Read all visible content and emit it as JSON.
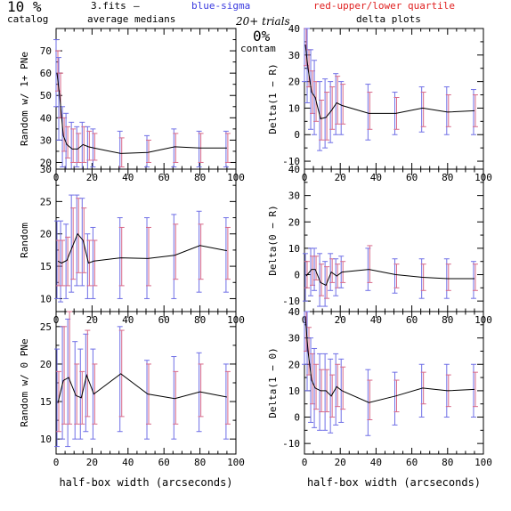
{
  "header": {
    "percent": "10 %",
    "catalog": "catalog",
    "filename": "3.fits",
    "dash": "–",
    "blue_label": "blue-sigma",
    "red_label": "red-upper/lower quartile",
    "avg_medians": "average medians",
    "trials": "20+ trials",
    "contam_pct": "0%",
    "contam": "contam",
    "delta_plots": "delta plots"
  },
  "colors": {
    "line": "#000000",
    "sigma": "#6f6fe6",
    "quartile": "#d86a8a",
    "blue_text": "#3a3adf",
    "red_text": "#e02020"
  },
  "chart_data": [
    {
      "type": "line",
      "panel": "left-top",
      "ylabel": "Random w/ 1+ PNe",
      "xlabel": "",
      "xlim": [
        0,
        100
      ],
      "ylim": [
        17,
        80
      ],
      "x_ticks": [
        0,
        20,
        40,
        60,
        80,
        100
      ],
      "y_ticks": [
        20,
        30,
        40,
        50,
        60,
        70
      ],
      "x": [
        0.5,
        2,
        4,
        6,
        9,
        12,
        15,
        18,
        21,
        36,
        51,
        66,
        80,
        95
      ],
      "y": [
        60,
        50,
        32,
        28,
        26,
        26,
        28,
        27,
        26.5,
        24,
        24.5,
        27,
        26.5,
        26.5
      ],
      "sigma": [
        [
          45,
          75
        ],
        [
          30,
          67
        ],
        [
          18,
          45
        ],
        [
          17,
          42
        ],
        [
          17,
          38
        ],
        [
          18,
          36
        ],
        [
          16,
          38
        ],
        [
          17,
          36
        ],
        [
          18,
          35
        ],
        [
          17,
          34
        ],
        [
          18,
          32
        ],
        [
          18,
          35
        ],
        [
          18,
          34
        ],
        [
          18,
          34
        ]
      ],
      "quartile": [
        [
          52,
          70
        ],
        [
          40,
          60
        ],
        [
          25,
          40
        ],
        [
          22,
          36
        ],
        [
          20,
          35
        ],
        [
          20,
          33
        ],
        [
          20,
          36
        ],
        [
          21,
          34
        ],
        [
          21,
          33
        ],
        [
          18,
          31
        ],
        [
          20,
          30
        ],
        [
          20,
          33
        ],
        [
          20,
          33
        ],
        [
          20,
          33
        ]
      ]
    },
    {
      "type": "line",
      "panel": "right-top",
      "ylabel": "Delta(1 − R)",
      "xlabel": "",
      "xlim": [
        0,
        100
      ],
      "ylim": [
        -13,
        40
      ],
      "x_ticks": [
        0,
        20,
        40,
        60,
        80,
        100
      ],
      "y_ticks": [
        -10,
        0,
        10,
        20,
        30,
        40
      ],
      "x": [
        0.5,
        2,
        4,
        6,
        9,
        12,
        15,
        18,
        21,
        36,
        51,
        66,
        80,
        95
      ],
      "y": [
        34,
        25,
        16,
        14,
        6,
        6.5,
        9,
        12,
        11,
        8,
        8,
        10,
        8.5,
        9
      ],
      "sigma": [
        [
          20,
          48
        ],
        [
          12,
          40
        ],
        [
          2,
          32
        ],
        [
          0,
          28
        ],
        [
          -6,
          20
        ],
        [
          -5,
          21
        ],
        [
          -3,
          20
        ],
        [
          0,
          23
        ],
        [
          0,
          20
        ],
        [
          -2,
          19
        ],
        [
          0,
          16
        ],
        [
          1,
          18
        ],
        [
          0,
          18
        ],
        [
          0,
          17
        ]
      ],
      "quartile": [
        [
          26,
          40
        ],
        [
          18,
          32
        ],
        [
          8,
          24
        ],
        [
          5,
          20
        ],
        [
          -2,
          13
        ],
        [
          -2,
          16
        ],
        [
          2,
          18
        ],
        [
          4,
          22
        ],
        [
          4,
          19
        ],
        [
          2,
          16
        ],
        [
          2,
          14
        ],
        [
          3,
          16
        ],
        [
          3,
          15
        ],
        [
          3,
          15
        ]
      ]
    },
    {
      "type": "line",
      "panel": "left-middle",
      "ylabel": "Random",
      "xlabel": "",
      "xlim": [
        0,
        100
      ],
      "ylim": [
        8,
        30
      ],
      "x_ticks": [
        0,
        20,
        40,
        60,
        80,
        100
      ],
      "y_ticks": [
        10,
        15,
        20,
        25,
        30
      ],
      "x": [
        1,
        3,
        6,
        9,
        12,
        15,
        18,
        21,
        36,
        51,
        66,
        80,
        95
      ],
      "y": [
        15.8,
        15.5,
        15.9,
        18,
        20,
        19,
        15.5,
        15.8,
        16.3,
        16.2,
        16.7,
        18.2,
        17.4
      ],
      "sigma": [
        [
          10,
          22
        ],
        [
          9.5,
          22
        ],
        [
          10,
          21.5
        ],
        [
          11,
          26
        ],
        [
          12,
          26
        ],
        [
          12,
          25.5
        ],
        [
          10,
          20
        ],
        [
          10,
          21
        ],
        [
          10,
          22.5
        ],
        [
          10,
          22.5
        ],
        [
          10,
          23
        ],
        [
          11,
          23.5
        ],
        [
          11,
          22.5
        ]
      ],
      "quartile": [
        [
          12,
          19
        ],
        [
          12,
          19
        ],
        [
          12,
          19.5
        ],
        [
          13,
          24
        ],
        [
          14,
          25.5
        ],
        [
          14,
          24
        ],
        [
          12,
          19
        ],
        [
          12,
          19
        ],
        [
          12,
          21
        ],
        [
          12,
          21
        ],
        [
          13,
          21.5
        ],
        [
          13,
          21.5
        ],
        [
          13,
          21
        ]
      ]
    },
    {
      "type": "line",
      "panel": "right-middle",
      "ylabel": "Delta(0 − R)",
      "xlabel": "",
      "xlim": [
        0,
        100
      ],
      "ylim": [
        -14,
        40
      ],
      "x_ticks": [
        0,
        20,
        40,
        60,
        80,
        100
      ],
      "y_ticks": [
        -10,
        0,
        10,
        20,
        30,
        40
      ],
      "x": [
        1,
        4,
        6,
        9,
        12,
        15,
        18,
        21,
        36,
        51,
        66,
        80,
        95
      ],
      "y": [
        -0.5,
        2,
        2,
        -3,
        -4,
        1,
        -0.5,
        1,
        2,
        0,
        -1,
        -1.5,
        -1.5
      ],
      "sigma": [
        [
          -10,
          8
        ],
        [
          -8,
          10
        ],
        [
          -6,
          10
        ],
        [
          -12,
          8
        ],
        [
          -12,
          5
        ],
        [
          -6,
          8
        ],
        [
          -8,
          6
        ],
        [
          -5,
          7
        ],
        [
          -6,
          10
        ],
        [
          -7,
          6
        ],
        [
          -9,
          6
        ],
        [
          -9,
          6
        ],
        [
          -9,
          5
        ]
      ],
      "quartile": [
        [
          -5,
          5
        ],
        [
          -4,
          7
        ],
        [
          -2,
          7
        ],
        [
          -8,
          4
        ],
        [
          -9,
          3
        ],
        [
          -3,
          6
        ],
        [
          -5,
          4
        ],
        [
          -3,
          5
        ],
        [
          -3,
          11
        ],
        [
          -5,
          4
        ],
        [
          -6,
          4
        ],
        [
          -6,
          4
        ],
        [
          -6,
          4
        ]
      ]
    },
    {
      "type": "line",
      "panel": "left-bottom",
      "ylabel": "Random w/ 0 PNe",
      "xlabel": "half-box width (arcseconds)",
      "xlim": [
        0,
        100
      ],
      "ylim": [
        8,
        27
      ],
      "x_ticks": [
        0,
        20,
        40,
        60,
        80,
        100
      ],
      "y_ticks": [
        10,
        15,
        20,
        25
      ],
      "x": [
        1,
        4,
        7,
        11,
        14,
        17,
        21,
        36,
        51,
        66,
        80,
        95
      ],
      "y": [
        14.8,
        17.8,
        18.2,
        15.8,
        15.5,
        18.5,
        16,
        18.7,
        16,
        15.4,
        16.3,
        15.6
      ],
      "sigma": [
        [
          9,
          22
        ],
        [
          10,
          25
        ],
        [
          9,
          26
        ],
        [
          10,
          23
        ],
        [
          10,
          22
        ],
        [
          11,
          24
        ],
        [
          10,
          22
        ],
        [
          11,
          25
        ],
        [
          10,
          20.5
        ],
        [
          10,
          21
        ],
        [
          11,
          21.5
        ],
        [
          10,
          20
        ]
      ],
      "quartile": [
        [
          11,
          19
        ],
        [
          12,
          25
        ],
        [
          12,
          27
        ],
        [
          12,
          20
        ],
        [
          12,
          19
        ],
        [
          13,
          24.5
        ],
        [
          12,
          20
        ],
        [
          13,
          24.5
        ],
        [
          12,
          20
        ],
        [
          12,
          19
        ],
        [
          13,
          20
        ],
        [
          12,
          19
        ]
      ]
    },
    {
      "type": "line",
      "panel": "right-bottom",
      "ylabel": "Delta(1 − 0)",
      "xlabel": "half-box width (arcseconds)",
      "xlim": [
        0,
        100
      ],
      "ylim": [
        -14,
        40
      ],
      "x_ticks": [
        0,
        20,
        40,
        60,
        80,
        100
      ],
      "y_ticks": [
        -10,
        0,
        10,
        20,
        30,
        40
      ],
      "x": [
        0.5,
        2,
        4,
        6,
        9,
        12,
        15,
        18,
        21,
        36,
        51,
        66,
        80,
        95
      ],
      "y": [
        38,
        25,
        14,
        11,
        10,
        10,
        8,
        11.5,
        10,
        5.5,
        8,
        11,
        10,
        10.5
      ],
      "sigma": [
        [
          20,
          50
        ],
        [
          10,
          40
        ],
        [
          -2,
          30
        ],
        [
          -4,
          26
        ],
        [
          -5,
          24
        ],
        [
          -5,
          24
        ],
        [
          -6,
          22
        ],
        [
          -3,
          24
        ],
        [
          -2,
          22
        ],
        [
          -7,
          18
        ],
        [
          -3,
          17
        ],
        [
          0,
          20
        ],
        [
          0,
          20
        ],
        [
          0,
          20
        ]
      ],
      "quartile": [
        [
          25,
          45
        ],
        [
          16,
          34
        ],
        [
          5,
          24
        ],
        [
          3,
          20
        ],
        [
          2,
          18
        ],
        [
          2,
          18
        ],
        [
          0,
          16
        ],
        [
          4,
          20
        ],
        [
          3,
          19
        ],
        [
          -1,
          14
        ],
        [
          2,
          14
        ],
        [
          5,
          17
        ],
        [
          4,
          16
        ],
        [
          4,
          17
        ]
      ]
    }
  ]
}
